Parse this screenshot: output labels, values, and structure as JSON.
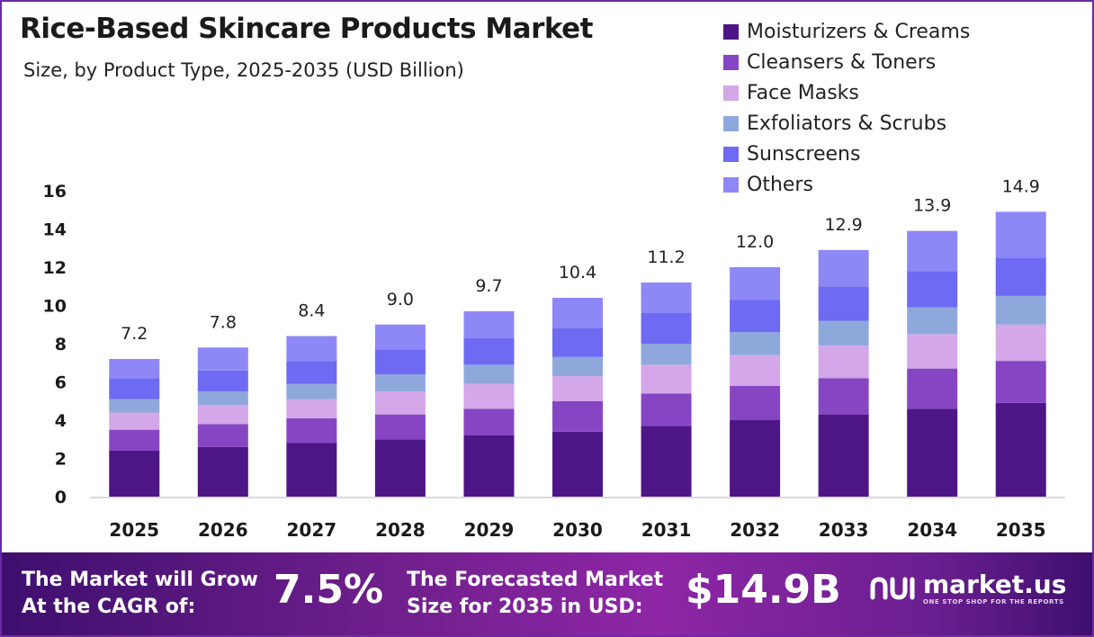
{
  "title": "Rice-Based Skincare Products Market",
  "subtitle": "Size, by Product Type, 2025-2035 (USD Billion)",
  "legend": [
    {
      "label": "Moisturizers & Creams",
      "color": "#4d1585"
    },
    {
      "label": "Cleansers & Toners",
      "color": "#8646c4"
    },
    {
      "label": "Face Masks",
      "color": "#d4a7e8"
    },
    {
      "label": "Exfoliators & Scrubs",
      "color": "#8fa8dc"
    },
    {
      "label": "Sunscreens",
      "color": "#6e6af2"
    },
    {
      "label": "Others",
      "color": "#8e88f7"
    }
  ],
  "chart_data": {
    "type": "bar",
    "stacked": true,
    "categories": [
      "2025",
      "2026",
      "2027",
      "2028",
      "2029",
      "2030",
      "2031",
      "2032",
      "2033",
      "2034",
      "2035"
    ],
    "series": [
      {
        "name": "Moisturizers & Creams",
        "values": [
          2.4,
          2.6,
          2.8,
          3.0,
          3.2,
          3.4,
          3.7,
          4.0,
          4.3,
          4.6,
          4.9
        ]
      },
      {
        "name": "Cleansers & Toners",
        "values": [
          1.1,
          1.2,
          1.3,
          1.3,
          1.4,
          1.6,
          1.7,
          1.8,
          1.9,
          2.1,
          2.2
        ]
      },
      {
        "name": "Face Masks",
        "values": [
          0.9,
          1.0,
          1.0,
          1.2,
          1.3,
          1.3,
          1.5,
          1.6,
          1.7,
          1.8,
          1.9
        ]
      },
      {
        "name": "Exfoliators & Scrubs",
        "values": [
          0.7,
          0.7,
          0.8,
          0.9,
          1.0,
          1.0,
          1.1,
          1.2,
          1.3,
          1.4,
          1.5
        ]
      },
      {
        "name": "Sunscreens",
        "values": [
          1.1,
          1.1,
          1.2,
          1.3,
          1.4,
          1.5,
          1.6,
          1.7,
          1.8,
          1.9,
          2.0
        ]
      },
      {
        "name": "Others",
        "values": [
          1.0,
          1.2,
          1.3,
          1.3,
          1.4,
          1.6,
          1.6,
          1.7,
          1.9,
          2.1,
          2.4
        ]
      }
    ],
    "totals": [
      "7.2",
      "7.8",
      "8.4",
      "9.0",
      "9.7",
      "10.4",
      "11.2",
      "12.0",
      "12.9",
      "13.9",
      "14.9"
    ],
    "yticks": [
      "0",
      "2",
      "4",
      "6",
      "8",
      "10",
      "12",
      "14",
      "16"
    ],
    "ylim": [
      0,
      16
    ],
    "xlabel": "",
    "ylabel": "",
    "grid": false,
    "legend_position": "top-right"
  },
  "footer": {
    "cagr_label_line1": "The Market will Grow",
    "cagr_label_line2": "At the CAGR of:",
    "cagr_value": "7.5%",
    "forecast_label_line1": "The Forecasted Market",
    "forecast_label_line2": "Size for 2035 in USD:",
    "forecast_value": "$14.9B",
    "brand_name": "market.us",
    "brand_tagline": "ONE STOP SHOP FOR THE REPORTS"
  }
}
